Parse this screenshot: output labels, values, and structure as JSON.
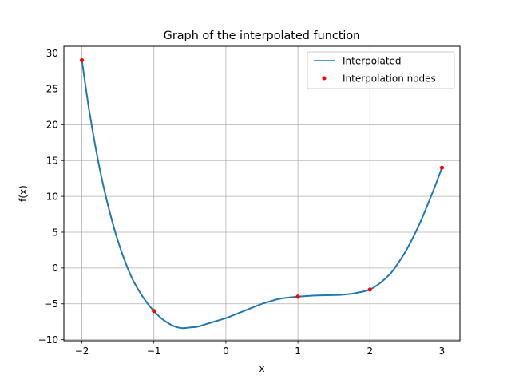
{
  "chart_data": {
    "type": "line",
    "title": "Graph of the interpolated function",
    "xlabel": "x",
    "ylabel": "f(x)",
    "xlim": [
      -2.25,
      3.25
    ],
    "ylim": [
      -10.15,
      30.95
    ],
    "xticks": [
      -2,
      -1,
      0,
      1,
      2,
      3
    ],
    "yticks": [
      -10,
      -5,
      0,
      5,
      10,
      15,
      20,
      25,
      30
    ],
    "grid": true,
    "legend_position": "top-right",
    "series": [
      {
        "name": "Interpolated",
        "kind": "line",
        "color": "#1f77b4",
        "x": [
          -2,
          -1.9,
          -1.8,
          -1.7,
          -1.6,
          -1.5,
          -1.4,
          -1.3,
          -1.2,
          -1.1,
          -1.0,
          -0.9,
          -0.8,
          -0.7,
          -0.6,
          -0.5,
          -0.4,
          -0.3,
          -0.2,
          -0.1,
          0.0,
          0.1,
          0.2,
          0.3,
          0.4,
          0.5,
          0.6,
          0.7,
          0.8,
          0.9,
          1.0,
          1.1,
          1.2,
          1.3,
          1.4,
          1.5,
          1.6,
          1.7,
          1.8,
          1.9,
          2.0,
          2.1,
          2.2,
          2.3,
          2.4,
          2.5,
          2.6,
          2.7,
          2.8,
          2.9,
          3.0
        ],
        "y": [
          29.0,
          22.1,
          16.3,
          11.4,
          7.3,
          3.8,
          0.9,
          -1.5,
          -3.3,
          -4.8,
          -6.0,
          -7.0,
          -7.7,
          -8.2,
          -8.4,
          -8.3,
          -8.2,
          -7.9,
          -7.6,
          -7.3,
          -7.0,
          -6.6,
          -6.2,
          -5.8,
          -5.4,
          -5.0,
          -4.7,
          -4.4,
          -4.2,
          -4.1,
          -4.0,
          -3.92,
          -3.85,
          -3.82,
          -3.8,
          -3.78,
          -3.75,
          -3.65,
          -3.5,
          -3.3,
          -3.0,
          -2.4,
          -1.6,
          -0.6,
          0.8,
          2.4,
          4.3,
          6.4,
          8.8,
          11.3,
          14.0
        ]
      },
      {
        "name": "Interpolation nodes",
        "kind": "points",
        "color": "#ff0000",
        "x": [
          -2,
          -1,
          1,
          2,
          3
        ],
        "y": [
          29,
          -6,
          -4,
          -3,
          14
        ]
      }
    ]
  }
}
